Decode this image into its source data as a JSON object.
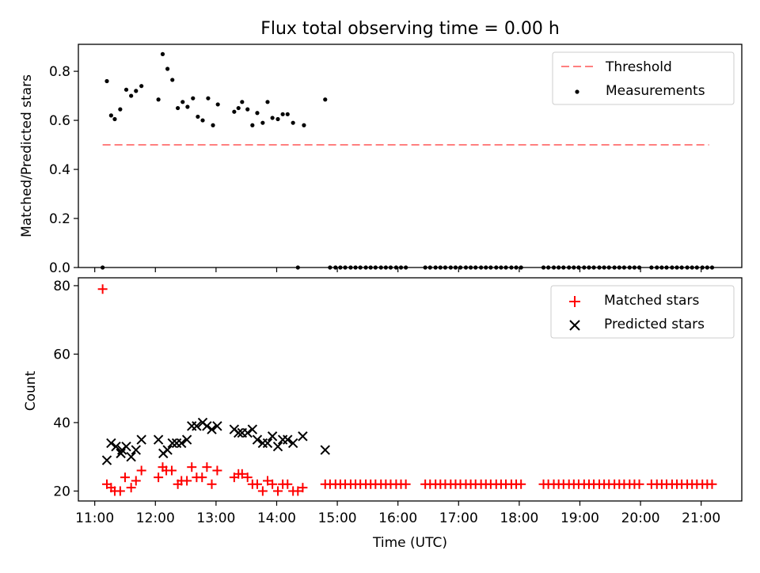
{
  "chart_data": [
    {
      "type": "scatter",
      "title": "Flux total observing time = 0.00 h",
      "ylabel": "Matched/Predicted stars",
      "xlabel": "",
      "xlim": [
        10.73,
        21.67
      ],
      "ylim": [
        0.0,
        0.91
      ],
      "yticks": [
        "0.0",
        "0.2",
        "0.4",
        "0.6",
        "0.8"
      ],
      "legend_position": "top-right",
      "threshold": {
        "name": "Threshold",
        "value": 0.5,
        "x": [
          11.13,
          21.13
        ],
        "color": "#ff7f7f",
        "style": "dashed"
      },
      "series": [
        {
          "name": "Measurements",
          "color": "#000000",
          "x": [
            11.13,
            11.2,
            11.27,
            11.33,
            11.42,
            11.52,
            11.6,
            11.68,
            11.77,
            12.05,
            12.12,
            12.2,
            12.28,
            12.37,
            12.45,
            12.53,
            12.62,
            12.7,
            12.78,
            12.87,
            12.95,
            13.03,
            13.3,
            13.37,
            13.43,
            13.52,
            13.6,
            13.68,
            13.77,
            13.85,
            13.93,
            14.02,
            14.1,
            14.18,
            14.27,
            14.35,
            14.45,
            14.8
          ],
          "y": [
            0.0,
            0.76,
            0.62,
            0.605,
            0.645,
            0.725,
            0.7,
            0.72,
            0.74,
            0.685,
            0.87,
            0.81,
            0.765,
            0.65,
            0.675,
            0.655,
            0.69,
            0.615,
            0.6,
            0.69,
            0.58,
            0.665,
            0.635,
            0.65,
            0.675,
            0.645,
            0.58,
            0.63,
            0.59,
            0.675,
            0.61,
            0.605,
            0.625,
            0.625,
            0.59,
            0.0,
            0.58,
            0.685
          ]
        },
        {
          "name": "",
          "color": "#000000",
          "x": [
            14.88,
            14.97,
            15.05,
            15.13,
            15.22,
            15.3,
            15.38,
            15.47,
            15.55,
            15.63,
            15.72,
            15.8,
            15.88,
            15.97,
            16.05,
            16.13,
            16.45,
            16.53,
            16.62,
            16.7,
            16.78,
            16.87,
            16.95,
            17.03,
            17.12,
            17.2,
            17.28,
            17.37,
            17.45,
            17.53,
            17.62,
            17.7,
            17.78,
            17.87,
            17.95,
            18.03,
            18.4,
            18.48,
            18.57,
            18.65,
            18.73,
            18.82,
            18.9,
            18.98,
            19.07,
            19.15,
            19.23,
            19.32,
            19.4,
            19.48,
            19.57,
            19.65,
            19.73,
            19.82,
            19.9,
            19.98,
            20.18,
            20.27,
            20.35,
            20.43,
            20.52,
            20.6,
            20.68,
            20.77,
            20.85,
            20.93,
            21.02,
            21.1,
            21.18
          ],
          "y": [
            0.0,
            0.0,
            0.0,
            0.0,
            0.0,
            0.0,
            0.0,
            0.0,
            0.0,
            0.0,
            0.0,
            0.0,
            0.0,
            0.0,
            0.0,
            0.0,
            0.0,
            0.0,
            0.0,
            0.0,
            0.0,
            0.0,
            0.0,
            0.0,
            0.0,
            0.0,
            0.0,
            0.0,
            0.0,
            0.0,
            0.0,
            0.0,
            0.0,
            0.0,
            0.0,
            0.0,
            0.0,
            0.0,
            0.0,
            0.0,
            0.0,
            0.0,
            0.0,
            0.0,
            0.0,
            0.0,
            0.0,
            0.0,
            0.0,
            0.0,
            0.0,
            0.0,
            0.0,
            0.0,
            0.0,
            0.0,
            0.0,
            0.0,
            0.0,
            0.0,
            0.0,
            0.0,
            0.0,
            0.0,
            0.0,
            0.0,
            0.0,
            0.0,
            0.0
          ]
        }
      ]
    },
    {
      "type": "scatter",
      "title": "",
      "ylabel": "Count",
      "xlabel": "Time (UTC)",
      "xlim": [
        10.73,
        21.67
      ],
      "ylim": [
        17.1,
        82.3
      ],
      "yticks": [
        "20",
        "40",
        "60",
        "80"
      ],
      "xticks": [
        "11:00",
        "12:00",
        "13:00",
        "14:00",
        "15:00",
        "16:00",
        "17:00",
        "18:00",
        "19:00",
        "20:00",
        "21:00"
      ],
      "legend_position": "top-right",
      "series": [
        {
          "name": "Matched stars",
          "marker": "+",
          "color": "#ff0000",
          "x": [
            11.13,
            11.2,
            11.27,
            11.33,
            11.42,
            11.5,
            11.6,
            11.68,
            11.77,
            12.05,
            12.12,
            12.18,
            12.27,
            12.37,
            12.43,
            12.52,
            12.6,
            12.68,
            12.77,
            12.85,
            12.93,
            13.02,
            13.3,
            13.37,
            13.43,
            13.52,
            13.6,
            13.68,
            13.77,
            13.85,
            13.93,
            14.02,
            14.1,
            14.18,
            14.27,
            14.35,
            14.43,
            14.8,
            14.88,
            14.97,
            15.05,
            15.13,
            15.22,
            15.3,
            15.38,
            15.47,
            15.55,
            15.63,
            15.72,
            15.8,
            15.88,
            15.97,
            16.05,
            16.13,
            16.45,
            16.53,
            16.62,
            16.7,
            16.78,
            16.87,
            16.95,
            17.03,
            17.12,
            17.2,
            17.28,
            17.37,
            17.45,
            17.53,
            17.62,
            17.7,
            17.78,
            17.87,
            17.95,
            18.03,
            18.4,
            18.48,
            18.57,
            18.65,
            18.73,
            18.82,
            18.9,
            18.98,
            19.07,
            19.15,
            19.23,
            19.32,
            19.4,
            19.48,
            19.57,
            19.65,
            19.73,
            19.82,
            19.9,
            19.98,
            20.18,
            20.27,
            20.35,
            20.43,
            20.52,
            20.6,
            20.68,
            20.77,
            20.85,
            20.93,
            21.02,
            21.1,
            21.18
          ],
          "y": [
            79,
            22,
            21,
            20,
            20,
            24,
            21,
            23,
            26,
            24,
            27,
            26,
            26,
            22,
            23,
            23,
            27,
            24,
            24,
            27,
            22,
            26,
            24,
            25,
            25,
            24,
            22,
            22,
            20,
            23,
            22,
            20,
            22,
            22,
            20,
            20,
            21,
            22,
            22,
            22,
            22,
            22,
            22,
            22,
            22,
            22,
            22,
            22,
            22,
            22,
            22,
            22,
            22,
            22,
            22,
            22,
            22,
            22,
            22,
            22,
            22,
            22,
            22,
            22,
            22,
            22,
            22,
            22,
            22,
            22,
            22,
            22,
            22,
            22,
            22,
            22,
            22,
            22,
            22,
            22,
            22,
            22,
            22,
            22,
            22,
            22,
            22,
            22,
            22,
            22,
            22,
            22,
            22,
            22,
            22,
            22,
            22,
            22,
            22,
            22,
            22,
            22,
            22,
            22,
            22,
            22,
            22
          ]
        },
        {
          "name": "Predicted stars",
          "marker": "x",
          "color": "#000000",
          "x": [
            11.2,
            11.27,
            11.35,
            11.43,
            11.45,
            11.52,
            11.6,
            11.68,
            11.77,
            12.05,
            12.13,
            12.2,
            12.28,
            12.35,
            12.43,
            12.52,
            12.6,
            12.68,
            12.78,
            12.85,
            12.93,
            13.02,
            13.3,
            13.37,
            13.43,
            13.52,
            13.6,
            13.68,
            13.77,
            13.85,
            13.93,
            14.02,
            14.1,
            14.18,
            14.27,
            14.43,
            14.8
          ],
          "y": [
            29,
            34,
            33,
            31,
            32,
            33,
            30,
            32,
            35,
            35,
            31,
            32,
            34,
            34,
            34,
            35,
            39,
            39,
            40,
            39,
            38,
            39,
            38,
            37,
            37,
            37,
            38,
            35,
            34,
            34,
            36,
            33,
            35,
            35,
            34,
            36,
            32
          ]
        }
      ]
    }
  ]
}
